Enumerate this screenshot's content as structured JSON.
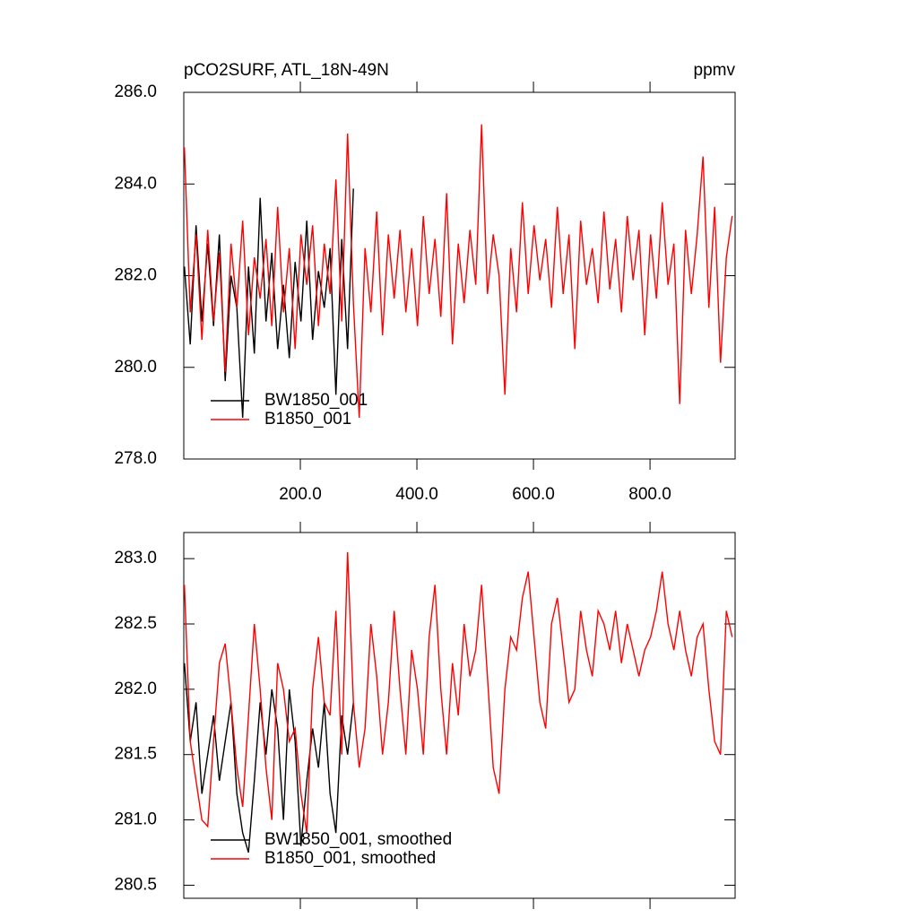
{
  "chart_data": [
    {
      "type": "line",
      "title": "pCO2SURF, ATL_18N-49N",
      "units": "ppmv",
      "xlim": [
        0,
        946
      ],
      "xticks": [
        {
          "value": 200,
          "label": "200.0"
        },
        {
          "value": 400,
          "label": "400.0"
        },
        {
          "value": 600,
          "label": "600.0"
        },
        {
          "value": 800,
          "label": "800.0"
        }
      ],
      "xtick_labels": true,
      "ylim": [
        278,
        286
      ],
      "yticks": [
        {
          "value": 278,
          "label": "278.0"
        },
        {
          "value": 280,
          "label": "280.0"
        },
        {
          "value": 282,
          "label": "282.0"
        },
        {
          "value": 284,
          "label": "284.0"
        },
        {
          "value": 286,
          "label": "286.0"
        }
      ],
      "legend": "lower left",
      "series": [
        {
          "name": "BW1850_001",
          "color": "#000000",
          "x": [
            1,
            11,
            21,
            31,
            41,
            51,
            61,
            71,
            81,
            91,
            101,
            111,
            121,
            131,
            141,
            151,
            161,
            171,
            181,
            191,
            201,
            211,
            221,
            231,
            241,
            251,
            261,
            271,
            281,
            291
          ],
          "values": [
            282.2,
            280.5,
            283.1,
            281.0,
            282.7,
            280.9,
            282.9,
            279.7,
            282.0,
            281.3,
            278.9,
            282.2,
            280.3,
            283.7,
            281.0,
            282.5,
            280.4,
            281.8,
            280.2,
            282.3,
            281.0,
            283.2,
            280.6,
            282.1,
            281.3,
            282.6,
            279.4,
            282.8,
            280.4,
            283.9
          ]
        },
        {
          "name": "B1850_001",
          "color": "#ff0000",
          "x": [
            1,
            11,
            21,
            31,
            41,
            51,
            61,
            71,
            81,
            91,
            101,
            111,
            121,
            131,
            141,
            151,
            161,
            171,
            181,
            191,
            201,
            211,
            221,
            231,
            241,
            251,
            261,
            271,
            281,
            291,
            301,
            311,
            321,
            331,
            341,
            351,
            361,
            371,
            381,
            391,
            401,
            411,
            421,
            431,
            441,
            451,
            461,
            471,
            481,
            491,
            501,
            511,
            521,
            531,
            541,
            551,
            561,
            571,
            581,
            591,
            601,
            611,
            621,
            631,
            641,
            651,
            661,
            671,
            681,
            691,
            701,
            711,
            721,
            731,
            741,
            751,
            761,
            771,
            781,
            791,
            801,
            811,
            821,
            831,
            841,
            851,
            861,
            871,
            881,
            891,
            901,
            911,
            921,
            931,
            941
          ],
          "values": [
            284.8,
            281.2,
            282.9,
            280.6,
            283.0,
            281.0,
            282.5,
            279.9,
            282.7,
            281.3,
            283.2,
            280.7,
            282.4,
            281.5,
            282.8,
            280.9,
            283.5,
            281.2,
            282.6,
            280.4,
            282.9,
            281.8,
            283.1,
            280.9,
            282.7,
            281.6,
            284.1,
            281.0,
            285.1,
            281.4,
            278.9,
            282.6,
            281.2,
            283.4,
            280.7,
            282.9,
            281.5,
            283.0,
            281.2,
            282.6,
            280.9,
            283.3,
            281.6,
            282.8,
            281.1,
            283.8,
            280.5,
            282.7,
            281.4,
            283.0,
            281.8,
            285.3,
            281.6,
            282.9,
            282.0,
            279.4,
            282.6,
            281.2,
            283.6,
            281.6,
            283.1,
            281.9,
            282.8,
            281.3,
            283.5,
            281.6,
            282.9,
            280.4,
            283.2,
            281.8,
            282.6,
            281.4,
            283.4,
            281.7,
            282.8,
            281.2,
            283.3,
            281.9,
            283.0,
            280.7,
            282.9,
            281.5,
            283.6,
            281.8,
            282.7,
            279.2,
            283.0,
            281.6,
            282.9,
            284.6,
            281.3,
            283.5,
            280.1,
            282.4,
            283.3
          ]
        }
      ]
    },
    {
      "type": "line",
      "xlim": [
        0,
        946
      ],
      "xticks": [
        200,
        400,
        600,
        800
      ],
      "xtick_labels": false,
      "ylim": [
        280.4,
        283.2
      ],
      "yticks": [
        {
          "value": 280.5,
          "label": "280.5"
        },
        {
          "value": 281,
          "label": "281.0"
        },
        {
          "value": 281.5,
          "label": "281.5"
        },
        {
          "value": 282,
          "label": "282.0"
        },
        {
          "value": 282.5,
          "label": "282.5"
        },
        {
          "value": 283,
          "label": "283.0"
        }
      ],
      "legend": "lower left",
      "series": [
        {
          "name": "BW1850_001, smoothed",
          "color": "#000000",
          "x": [
            1,
            11,
            21,
            31,
            41,
            51,
            61,
            71,
            81,
            91,
            101,
            111,
            121,
            131,
            141,
            151,
            161,
            171,
            181,
            191,
            201,
            211,
            221,
            231,
            241,
            251,
            261,
            271,
            281,
            291
          ],
          "values": [
            282.2,
            281.6,
            281.9,
            281.2,
            281.5,
            281.8,
            281.3,
            281.6,
            281.9,
            281.2,
            280.9,
            280.75,
            281.3,
            281.9,
            281.5,
            282.0,
            281.7,
            281.0,
            282.0,
            281.6,
            280.8,
            281.3,
            281.7,
            281.4,
            281.9,
            281.2,
            280.9,
            281.8,
            281.5,
            281.9
          ]
        },
        {
          "name": "B1850_001, smoothed",
          "color": "#ff0000",
          "x": [
            1,
            11,
            21,
            31,
            41,
            51,
            61,
            71,
            81,
            91,
            101,
            111,
            121,
            131,
            141,
            151,
            161,
            171,
            181,
            191,
            201,
            211,
            221,
            231,
            241,
            251,
            261,
            271,
            281,
            291,
            301,
            311,
            321,
            331,
            341,
            351,
            361,
            371,
            381,
            391,
            401,
            411,
            421,
            431,
            441,
            451,
            461,
            471,
            481,
            491,
            501,
            511,
            521,
            531,
            541,
            551,
            561,
            571,
            581,
            591,
            601,
            611,
            621,
            631,
            641,
            651,
            661,
            671,
            681,
            691,
            701,
            711,
            721,
            731,
            741,
            751,
            761,
            771,
            781,
            791,
            801,
            811,
            821,
            831,
            841,
            851,
            861,
            871,
            881,
            891,
            901,
            911,
            921,
            931,
            941
          ],
          "values": [
            282.8,
            281.6,
            281.3,
            281.0,
            280.95,
            281.6,
            282.2,
            282.35,
            281.9,
            281.4,
            281.1,
            281.8,
            282.5,
            282.0,
            281.4,
            281.0,
            282.2,
            282.0,
            281.6,
            281.7,
            281.2,
            280.9,
            282.0,
            282.4,
            281.9,
            281.8,
            282.6,
            281.5,
            283.05,
            281.9,
            281.4,
            281.7,
            282.5,
            282.1,
            281.5,
            281.9,
            282.6,
            282.0,
            281.5,
            282.3,
            282.0,
            281.5,
            282.4,
            282.8,
            282.0,
            281.5,
            282.2,
            281.8,
            282.5,
            282.1,
            282.3,
            282.8,
            282.1,
            281.4,
            281.2,
            282.0,
            282.4,
            282.3,
            282.7,
            282.9,
            282.4,
            281.9,
            281.7,
            282.5,
            282.7,
            282.3,
            281.9,
            282.0,
            282.6,
            282.3,
            282.1,
            282.6,
            282.5,
            282.3,
            282.6,
            282.2,
            282.5,
            282.3,
            282.1,
            282.3,
            282.4,
            282.6,
            282.9,
            282.5,
            282.3,
            282.6,
            282.3,
            282.1,
            282.4,
            282.5,
            282.0,
            281.6,
            281.5,
            282.6,
            282.4
          ]
        }
      ]
    }
  ]
}
